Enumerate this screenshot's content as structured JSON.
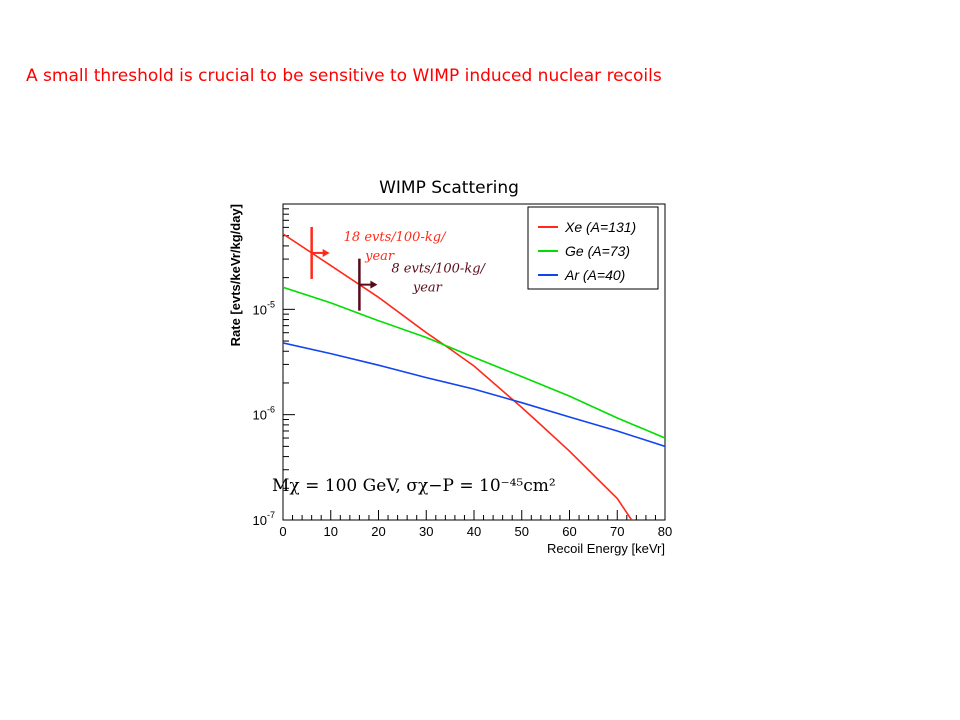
{
  "slide": {
    "headline": "A small threshold is crucial to be sensitive to WIMP induced nuclear recoils",
    "headline_color": "#ff0000"
  },
  "chart_data": {
    "type": "line",
    "title": "WIMP Scattering",
    "xlabel": "Recoil Energy [keVr]",
    "ylabel": "Rate [evts/keVr/kg/day]",
    "xlim": [
      0,
      80
    ],
    "ylim": [
      1e-07,
      0.0001
    ],
    "y_scale": "log",
    "x_ticks": [
      "0",
      "10",
      "20",
      "30",
      "40",
      "50",
      "60",
      "70",
      "80"
    ],
    "y_ticks": [
      {
        "base": "10",
        "exp": "-7",
        "value": 1e-07
      },
      {
        "base": "10",
        "exp": "-6",
        "value": 1e-06
      },
      {
        "base": "10",
        "exp": "-5",
        "value": 1e-05
      }
    ],
    "legend_position": "top-right",
    "series": [
      {
        "name": "Xe (A=131)",
        "color": "#ff2a1a",
        "x": [
          0,
          10,
          20,
          30,
          35,
          40,
          50,
          54,
          60,
          70,
          73
        ],
        "y": [
          5.2e-05,
          2.6e-05,
          1.3e-05,
          6e-06,
          4.2e-06,
          2.9e-06,
          1.17e-06,
          8e-07,
          4.5e-07,
          1.6e-07,
          1e-07
        ]
      },
      {
        "name": "Ge (A=73)",
        "color": "#00dd00",
        "x": [
          0,
          10,
          20,
          30,
          40,
          50,
          60,
          70,
          80
        ],
        "y": [
          1.62e-05,
          1.15e-05,
          7.8e-06,
          5.4e-06,
          3.5e-06,
          2.3e-06,
          1.5e-06,
          9.3e-07,
          6e-07
        ]
      },
      {
        "name": "Ar (A=40)",
        "color": "#1144ee",
        "x": [
          0,
          10,
          20,
          30,
          40,
          50,
          60,
          70,
          80
        ],
        "y": [
          4.8e-06,
          3.8e-06,
          2.95e-06,
          2.25e-06,
          1.75e-06,
          1.3e-06,
          9.5e-07,
          7e-07,
          5e-07
        ]
      }
    ],
    "annotations": [
      {
        "text_line1": "18 evts/100-kg/",
        "text_line2": "year",
        "color": "#ff2a1a",
        "threshold_x": 6
      },
      {
        "text_line1": "8 evts/100-kg/",
        "text_line2": "year",
        "color": "#5a0a1a",
        "threshold_x": 16
      }
    ],
    "formula": "Mχ = 100 GeV, σχ−P = 10⁻⁴⁵cm²"
  }
}
